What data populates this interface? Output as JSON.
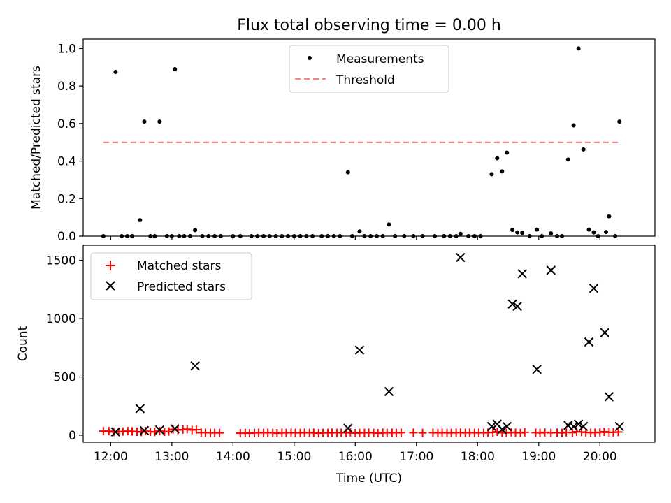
{
  "title": "Flux total observing time = 0.00 h",
  "chart_data": [
    {
      "type": "scatter",
      "ylabel": "Matched/Predicted stars",
      "ylim": [
        0,
        1.05
      ],
      "xlim": [
        11.55,
        20.9
      ],
      "yticks": [
        0.0,
        0.2,
        0.4,
        0.6,
        0.8,
        1.0
      ],
      "ytick_labels": [
        "0.0",
        "0.2",
        "0.4",
        "0.6",
        "0.8",
        "1.0"
      ],
      "legend": {
        "placement": "top-center",
        "entries": [
          "Measurements",
          "Threshold"
        ]
      },
      "threshold": {
        "name": "Threshold",
        "value": 0.5,
        "x_range": [
          11.88,
          20.3
        ],
        "color": "#ff7f7f"
      },
      "series": [
        {
          "name": "Measurements",
          "color": "#000000",
          "x": [
            11.88,
            12.08,
            12.18,
            12.27,
            12.35,
            12.48,
            12.55,
            12.65,
            12.72,
            12.8,
            12.92,
            13.0,
            13.05,
            13.12,
            13.2,
            13.3,
            13.38,
            13.5,
            13.6,
            13.7,
            13.8,
            14.0,
            14.12,
            14.3,
            14.4,
            14.5,
            14.6,
            14.7,
            14.8,
            14.9,
            15.0,
            15.1,
            15.2,
            15.3,
            15.45,
            15.55,
            15.65,
            15.75,
            15.88,
            15.95,
            16.07,
            16.15,
            16.25,
            16.35,
            16.45,
            16.55,
            16.65,
            16.8,
            16.95,
            17.1,
            17.3,
            17.45,
            17.55,
            17.65,
            17.72,
            17.85,
            17.95,
            18.05,
            18.23,
            18.32,
            18.4,
            18.48,
            18.57,
            18.65,
            18.73,
            18.85,
            18.97,
            19.05,
            19.2,
            19.3,
            19.38,
            19.48,
            19.57,
            19.65,
            19.73,
            19.82,
            19.9,
            19.97,
            20.1,
            20.15,
            20.25,
            20.32
          ],
          "y": [
            0.0,
            0.875,
            0.0,
            0.0,
            0.0,
            0.085,
            0.61,
            0.0,
            0.0,
            0.61,
            0.0,
            0.0,
            0.89,
            0.0,
            0.0,
            0.0,
            0.032,
            0.0,
            0.0,
            0.0,
            0.0,
            0.0,
            0.0,
            0.0,
            0.0,
            0.0,
            0.0,
            0.0,
            0.0,
            0.0,
            0.0,
            0.0,
            0.0,
            0.0,
            0.0,
            0.0,
            0.0,
            0.0,
            0.34,
            0.0,
            0.025,
            0.0,
            0.0,
            0.0,
            0.0,
            0.062,
            0.0,
            0.0,
            0.0,
            0.0,
            0.0,
            0.0,
            0.0,
            0.0,
            0.012,
            0.0,
            0.0,
            0.0,
            0.33,
            0.415,
            0.345,
            0.445,
            0.033,
            0.02,
            0.018,
            0.0,
            0.035,
            0.0,
            0.015,
            0.0,
            0.0,
            0.408,
            0.59,
            1.0,
            0.462,
            0.035,
            0.02,
            0.0,
            0.022,
            0.105,
            0.0,
            0.61
          ]
        }
      ]
    },
    {
      "type": "scatter",
      "xlabel": "Time (UTC)",
      "ylabel": "Count",
      "ylim": [
        -60,
        1630
      ],
      "xlim": [
        11.55,
        20.9
      ],
      "yticks": [
        0,
        500,
        1000,
        1500
      ],
      "ytick_labels": [
        "0",
        "500",
        "1000",
        "1500"
      ],
      "xticks": [
        12,
        13,
        14,
        15,
        16,
        17,
        18,
        19,
        20
      ],
      "xtick_labels": [
        "12:00",
        "13:00",
        "14:00",
        "15:00",
        "16:00",
        "17:00",
        "18:00",
        "19:00",
        "20:00"
      ],
      "legend": {
        "placement": "top-left",
        "entries": [
          "Matched stars",
          "Predicted stars"
        ]
      },
      "series": [
        {
          "name": "Matched stars",
          "marker": "plus",
          "color": "#ff0000",
          "x": [
            11.88,
            11.97,
            12.05,
            12.13,
            12.2,
            12.28,
            12.35,
            12.43,
            12.5,
            12.57,
            12.65,
            12.72,
            12.8,
            12.88,
            12.95,
            13.02,
            13.1,
            13.18,
            13.25,
            13.33,
            13.4,
            13.48,
            13.55,
            13.63,
            13.7,
            13.78,
            14.12,
            14.2,
            14.27,
            14.35,
            14.42,
            14.5,
            14.57,
            14.65,
            14.72,
            14.8,
            14.87,
            14.95,
            15.02,
            15.1,
            15.17,
            15.25,
            15.32,
            15.4,
            15.47,
            15.55,
            15.62,
            15.7,
            15.77,
            15.85,
            15.92,
            16.0,
            16.07,
            16.15,
            16.22,
            16.3,
            16.37,
            16.45,
            16.52,
            16.6,
            16.67,
            16.75,
            16.95,
            17.1,
            17.27,
            17.35,
            17.42,
            17.5,
            17.57,
            17.65,
            17.72,
            17.8,
            17.87,
            17.95,
            18.02,
            18.1,
            18.17,
            18.25,
            18.32,
            18.4,
            18.47,
            18.55,
            18.62,
            18.7,
            18.77,
            18.95,
            19.02,
            19.1,
            19.2,
            19.3,
            19.38,
            19.45,
            19.55,
            19.62,
            19.7,
            19.77,
            19.85,
            19.92,
            20.0,
            20.07,
            20.15,
            20.22,
            20.3
          ],
          "y": [
            35,
            35,
            28,
            30,
            32,
            35,
            33,
            30,
            28,
            35,
            30,
            28,
            35,
            30,
            32,
            50,
            45,
            48,
            52,
            45,
            48,
            22,
            22,
            20,
            20,
            20,
            18,
            20,
            18,
            20,
            22,
            20,
            22,
            20,
            18,
            22,
            20,
            22,
            20,
            20,
            22,
            20,
            22,
            18,
            20,
            20,
            22,
            20,
            22,
            20,
            25,
            18,
            20,
            20,
            22,
            20,
            18,
            22,
            20,
            22,
            20,
            22,
            22,
            20,
            22,
            20,
            22,
            20,
            20,
            22,
            22,
            20,
            22,
            20,
            22,
            20,
            22,
            25,
            30,
            22,
            20,
            25,
            22,
            20,
            25,
            22,
            20,
            25,
            20,
            22,
            20,
            25,
            22,
            30,
            28,
            25,
            22,
            22,
            25,
            30,
            25,
            25,
            28
          ]
        },
        {
          "name": "Predicted stars",
          "marker": "x",
          "color": "#000000",
          "x": [
            12.08,
            12.48,
            12.55,
            12.8,
            13.05,
            13.38,
            15.88,
            16.07,
            16.55,
            17.72,
            18.23,
            18.32,
            18.4,
            18.48,
            18.57,
            18.65,
            18.73,
            18.97,
            19.2,
            19.48,
            19.57,
            19.65,
            19.73,
            19.82,
            19.9,
            20.08,
            20.15,
            20.32
          ],
          "y": [
            28,
            228,
            40,
            45,
            55,
            595,
            60,
            730,
            375,
            1525,
            75,
            95,
            50,
            75,
            1125,
            1105,
            1385,
            565,
            1415,
            85,
            75,
            95,
            75,
            800,
            1260,
            880,
            330,
            75
          ]
        }
      ]
    }
  ]
}
